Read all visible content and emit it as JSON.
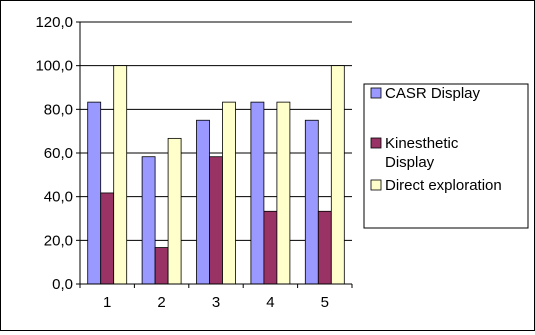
{
  "chart_data": {
    "type": "bar",
    "categories": [
      "1",
      "2",
      "3",
      "4",
      "5"
    ],
    "series": [
      {
        "name": "CASR Display",
        "values": [
          83.3,
          58.3,
          75.0,
          83.3,
          75.0
        ],
        "color": "#9999FF"
      },
      {
        "name": "Kinesthetic Display",
        "legend_lines": [
          "Kinesthetic",
          "Display"
        ],
        "values": [
          41.7,
          16.7,
          58.3,
          33.3,
          33.3
        ],
        "color": "#993366"
      },
      {
        "name": "Direct exploration",
        "values": [
          100.0,
          66.7,
          83.3,
          83.3,
          100.0
        ],
        "color": "#FFFFCC"
      }
    ],
    "ylim": [
      0,
      120
    ],
    "yticks": [
      0,
      20,
      40,
      60,
      80,
      100,
      120
    ],
    "ytick_labels": [
      "0,0",
      "20,0",
      "40,0",
      "60,0",
      "80,0",
      "100,0",
      "120,0"
    ],
    "title": "",
    "xlabel": "",
    "ylabel": "",
    "grid": "horizontal",
    "legend_position": "right"
  }
}
